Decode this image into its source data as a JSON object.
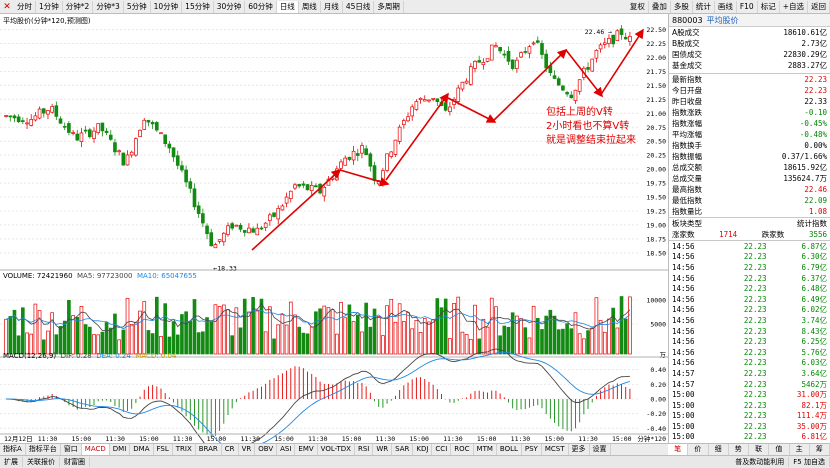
{
  "toolbar": {
    "items": [
      "分时",
      "1分钟",
      "分钟*2",
      "分钟*3",
      "5分钟",
      "10分钟",
      "15分钟",
      "30分钟",
      "60分钟",
      "日线",
      "周线",
      "月线",
      "45日线",
      "多周期"
    ],
    "right_items": [
      "复权",
      "叠加",
      "多股",
      "统计",
      "画线",
      "F10",
      "标记",
      "+自选",
      "返回"
    ]
  },
  "chart": {
    "title": "平均股价(分钟*120,预测图)",
    "price_ticks": [
      "22.50",
      "22.25",
      "22.00",
      "21.75",
      "21.50",
      "21.25",
      "21.00",
      "20.75",
      "20.50",
      "20.25",
      "20.00",
      "19.75",
      "19.50",
      "19.25",
      "19.00",
      "18.75",
      "18.50"
    ],
    "high_label": "22.46",
    "low_label": "18.33",
    "annotation": [
      "包括上周的V转",
      "2小时看也不算V转",
      "就是调整结束拉起来"
    ]
  },
  "volume": {
    "title": "VOLUME: 72421960",
    "ma5": "MA5: 97723000",
    "ma10": "MA10: 65047655",
    "ticks": [
      "10000",
      "5000"
    ],
    "unit": "万"
  },
  "macd": {
    "title": "MACD(12,26,9)",
    "dif": "DIF: 0.28",
    "dea": "DEA: 0.24",
    "macd_val": "MACD: 0.04",
    "ticks": [
      "0.40",
      "0.20",
      "0.00",
      "-0.20",
      "-0.40"
    ]
  },
  "time_axis": [
    "12月12日",
    "11:30",
    "15:00",
    "11:30",
    "15:00",
    "11:30",
    "15:00",
    "11:30",
    "15:00",
    "11:30",
    "15:00",
    "11:30",
    "15:00",
    "11:30",
    "15:00",
    "11:30",
    "15:00",
    "11:30",
    "15:00"
  ],
  "time_axis_right": "分钟*120",
  "bottom_tabs": [
    "指标A",
    "指标平台",
    "窗口",
    "MACD",
    "DMI",
    "DMA",
    "FSL",
    "TRIX",
    "BRAR",
    "CR",
    "VR",
    "OBV",
    "ASI",
    "EMV",
    "VOL-TDX",
    "RSI",
    "WR",
    "SAR",
    "KDJ",
    "CCI",
    "ROC",
    "MTM",
    "BOLL",
    "PSY",
    "MCST",
    "更多",
    "设置"
  ],
  "status_bar": [
    "扩展",
    "关联报价",
    "财富圈"
  ],
  "status_right": "普及数动能利用",
  "status_right2": "F5 加自选",
  "panel": {
    "code": "880003",
    "name": "平均股价",
    "summary": [
      {
        "label": "A股成交",
        "value": "18610.61亿"
      },
      {
        "label": "B股成交",
        "value": "2.73亿"
      },
      {
        "label": "国债成交",
        "value": "22830.29亿"
      },
      {
        "label": "基金成交",
        "value": "2883.27亿"
      }
    ],
    "stats": [
      {
        "label": "最新指数",
        "value": "22.23",
        "color": "red"
      },
      {
        "label": "今日开盘",
        "value": "22.23",
        "color": "red"
      },
      {
        "label": "昨日收盘",
        "value": "22.33",
        "color": "blk"
      },
      {
        "label": "指数涨跌",
        "value": "-0.10",
        "color": "grn"
      },
      {
        "label": "指数涨幅",
        "value": "-0.45%",
        "color": "grn"
      },
      {
        "label": "平均涨幅",
        "value": "-0.48%",
        "color": "grn"
      },
      {
        "label": "指数换手",
        "value": "0.00%",
        "color": "blk"
      },
      {
        "label": "指数振幅",
        "value": "0.37/1.66%",
        "color": "blk"
      },
      {
        "label": "总成交额",
        "value": "18615.92亿",
        "color": "blk"
      },
      {
        "label": "总成交量",
        "value": "135624.7万",
        "color": "blk"
      },
      {
        "label": "最高指数",
        "value": "22.46",
        "color": "red"
      },
      {
        "label": "最低指数",
        "value": "22.09",
        "color": "grn"
      },
      {
        "label": "指数量比",
        "value": "1.08",
        "color": "red"
      }
    ],
    "category_label": "板块类型",
    "category_value": "统计指数",
    "advance_label": "涨家数",
    "advance": "1714",
    "decline_label": "跌家数",
    "decline": "3556",
    "ticks": [
      {
        "t": "14:56",
        "p": "22.23",
        "v": "6.87亿",
        "c": "grn"
      },
      {
        "t": "14:56",
        "p": "22.23",
        "v": "6.30亿",
        "c": "grn"
      },
      {
        "t": "14:56",
        "p": "22.23",
        "v": "6.79亿",
        "c": "grn"
      },
      {
        "t": "14:56",
        "p": "22.23",
        "v": "6.37亿",
        "c": "grn"
      },
      {
        "t": "14:56",
        "p": "22.23",
        "v": "6.48亿",
        "c": "grn"
      },
      {
        "t": "14:56",
        "p": "22.23",
        "v": "6.49亿",
        "c": "grn"
      },
      {
        "t": "14:56",
        "p": "22.23",
        "v": "6.02亿",
        "c": "grn"
      },
      {
        "t": "14:56",
        "p": "22.23",
        "v": "3.74亿",
        "c": "grn"
      },
      {
        "t": "14:56",
        "p": "22.23",
        "v": "8.43亿",
        "c": "grn"
      },
      {
        "t": "14:56",
        "p": "22.23",
        "v": "6.25亿",
        "c": "grn"
      },
      {
        "t": "14:56",
        "p": "22.23",
        "v": "5.76亿",
        "c": "grn"
      },
      {
        "t": "14:56",
        "p": "22.23",
        "v": "6.03亿",
        "c": "grn"
      },
      {
        "t": "14:57",
        "p": "22.23",
        "v": "3.64亿",
        "c": "grn"
      },
      {
        "t": "14:57",
        "p": "22.23",
        "v": "5462万",
        "c": "grn"
      },
      {
        "t": "15:00",
        "p": "22.23",
        "v": "31.00万",
        "c": "red"
      },
      {
        "t": "15:00",
        "p": "22.23",
        "v": "82.1万",
        "c": "red"
      },
      {
        "t": "15:00",
        "p": "22.23",
        "v": "111.4万",
        "c": "red"
      },
      {
        "t": "15:00",
        "p": "22.23",
        "v": "35.00万",
        "c": "red"
      },
      {
        "t": "15:00",
        "p": "22.23",
        "v": "6.81亿",
        "c": "red"
      },
      {
        "t": "15:30",
        "p": "22.23",
        "v": "716.0万",
        "c": "red"
      },
      {
        "t": "15:30",
        "p": "22.23",
        "v": "1127万",
        "c": "red"
      }
    ],
    "bottom_tabs": [
      "笔",
      "价",
      "细",
      "势",
      "联",
      "值",
      "主",
      "筹"
    ]
  },
  "colors": {
    "up": "#e60000",
    "down": "#138a13",
    "ma5": "#444444",
    "ma10": "#1e88e5",
    "arrow": "#e00000"
  }
}
